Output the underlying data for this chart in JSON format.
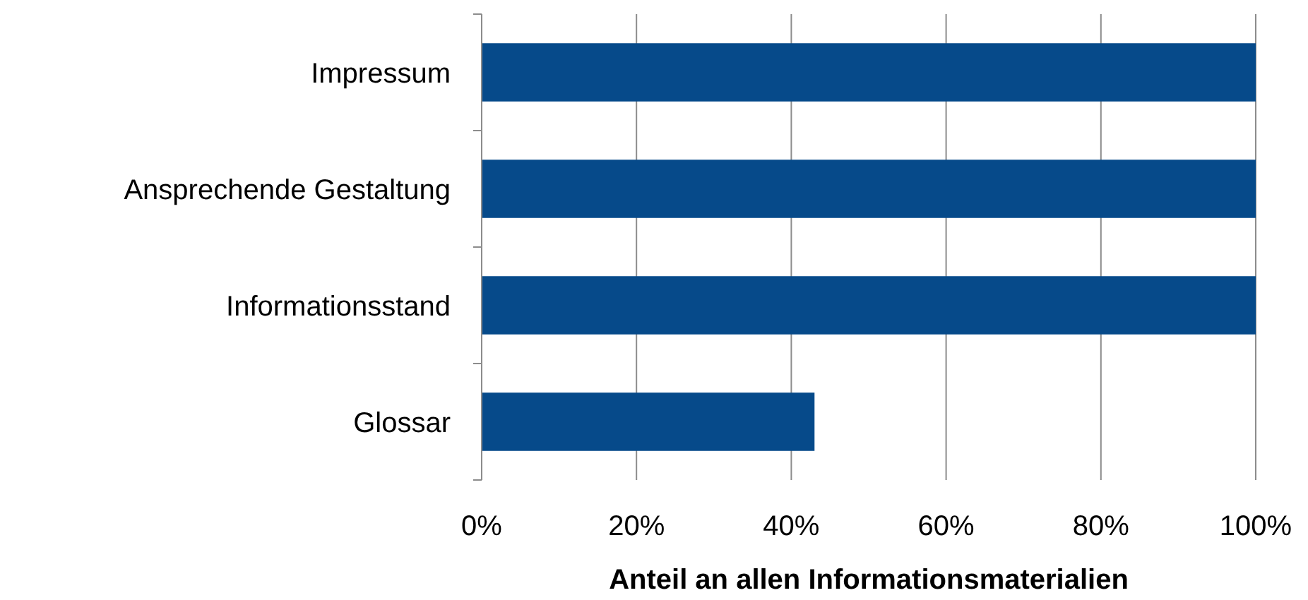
{
  "chart_data": {
    "type": "bar",
    "orientation": "horizontal",
    "categories": [
      "Impressum",
      "Ansprechende Gestaltung",
      "Informationsstand",
      "Glossar"
    ],
    "values": [
      100,
      100,
      100,
      43
    ],
    "color": "#064a8a",
    "xlim": [
      0,
      100
    ],
    "xticks": [
      {
        "value": 0,
        "label": "0%"
      },
      {
        "value": 20,
        "label": "20%"
      },
      {
        "value": 40,
        "label": "40%"
      },
      {
        "value": 60,
        "label": "60%"
      },
      {
        "value": 80,
        "label": "80%"
      },
      {
        "value": 100,
        "label": "100%"
      }
    ],
    "xlabel": "Anteil an allen Informationsmaterialien",
    "grid": "x"
  }
}
